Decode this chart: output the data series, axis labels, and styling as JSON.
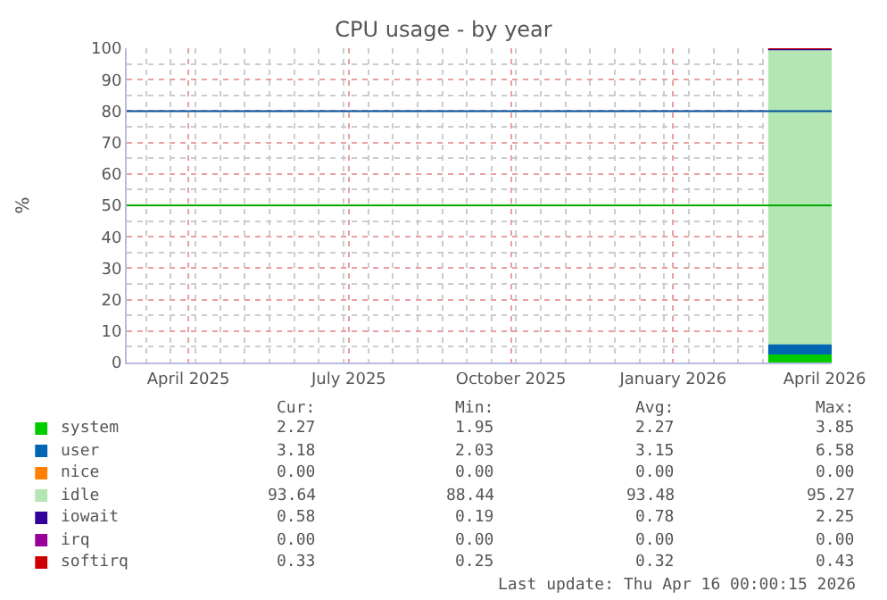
{
  "chart_data": {
    "type": "area",
    "stacked": true,
    "title": "CPU usage - by year",
    "ylabel": "%",
    "x": [
      "2026-03-11",
      "2026-04-16"
    ],
    "xlim": [
      "2025-03-12",
      "2026-04-16"
    ],
    "xticks": [
      {
        "value": "2025-04-16",
        "label": "April 2025"
      },
      {
        "value": "2025-07-16",
        "label": "July 2025"
      },
      {
        "value": "2025-10-16",
        "label": "October 2025"
      },
      {
        "value": "2026-01-16",
        "label": "January 2026"
      },
      {
        "value": "2026-04-12",
        "label": "April 2026"
      }
    ],
    "ylim": [
      0,
      100
    ],
    "yticks": [
      0,
      10,
      20,
      30,
      40,
      50,
      60,
      70,
      80,
      90,
      100
    ],
    "grid": true,
    "legend": "bottom left",
    "marker": "none",
    "line_style": "solid",
    "series": [
      {
        "name": "system",
        "color": "#00cc00",
        "values": [
          2.3,
          2.3
        ]
      },
      {
        "name": "user",
        "color": "#0066b3",
        "values": [
          3.2,
          3.2
        ]
      },
      {
        "name": "nice",
        "color": "#ff8000",
        "values": [
          null,
          null
        ]
      },
      {
        "name": "idle",
        "color": "#b3e6b3",
        "values": [
          93.6,
          93.6
        ]
      },
      {
        "name": "iowait",
        "color": "#330099",
        "values": [
          0.6,
          0.6
        ]
      },
      {
        "name": "irq",
        "color": "#990099",
        "values": [
          null,
          null
        ]
      },
      {
        "name": "softirq",
        "color": "#cc0000",
        "values": [
          0.3,
          0.3
        ]
      }
    ],
    "ref_lines": [
      {
        "axis": "y",
        "value": 80,
        "color": "#00509d"
      },
      {
        "axis": "y",
        "value": 50,
        "color": "#00aa00"
      }
    ],
    "annotations": [
      "Cur:",
      "Min:",
      "Avg:",
      "Max:",
      "2.27",
      "1.95",
      "2.27",
      "3.85",
      "3.18",
      "2.03",
      "3.15",
      "6.58",
      "0.00",
      "0.00",
      "0.00",
      "0.00",
      "93.64",
      "88.44",
      "93.48",
      "95.27",
      "0.58",
      "0.19",
      "0.78",
      "2.25",
      "0.00",
      "0.00",
      "0.00",
      "0.00",
      "0.33",
      "0.25",
      "0.32",
      "0.43",
      "Last update: Thu Apr 16 00:00:15 2026"
    ]
  }
}
